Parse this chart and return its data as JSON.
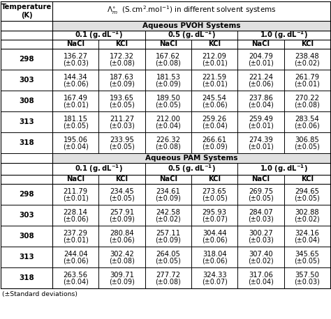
{
  "temperatures": [
    298,
    303,
    308,
    313,
    318
  ],
  "conc_headers": [
    "0.1 (g.dL⁻¹)",
    "0.5 (g.dL⁻¹)",
    "1.0 (g.dL⁻¹)"
  ],
  "salt_headers": [
    "NaCl",
    "KCl",
    "NaCl",
    "KCl",
    "NaCl",
    "KCl"
  ],
  "pvoh_data": [
    [
      [
        "136.27",
        "(±0.03)"
      ],
      [
        "172.32",
        "(±0.08)"
      ],
      [
        "167.62",
        "(±0.08)"
      ],
      [
        "212.09",
        "(±0.01)"
      ],
      [
        "204.79",
        "(±0.01)"
      ],
      [
        "238.48",
        "(±0.02)"
      ]
    ],
    [
      [
        "144.34",
        "(±0.06)"
      ],
      [
        "187.63",
        "(±0.09)"
      ],
      [
        "181.53",
        "(±0.09)"
      ],
      [
        "221.59",
        "(±0.01)"
      ],
      [
        "221.24",
        "(±0.06)"
      ],
      [
        "261.79",
        "(±0.01)"
      ]
    ],
    [
      [
        "167.49",
        "(±0.01)"
      ],
      [
        "193.65",
        "(±0.05)"
      ],
      [
        "189.50",
        "(±0.05)"
      ],
      [
        "245.54",
        "(±0.06)"
      ],
      [
        "237.86",
        "(±0.04)"
      ],
      [
        "270.22",
        "(±0.08)"
      ]
    ],
    [
      [
        "181.15",
        "(±0.05)"
      ],
      [
        "211.27",
        "(±0.03)"
      ],
      [
        "212.00",
        "(±0.04)"
      ],
      [
        "259.26",
        "(±0.04)"
      ],
      [
        "259.49",
        "(±0.01)"
      ],
      [
        "283.54",
        "(±0.06)"
      ]
    ],
    [
      [
        "195.06",
        "(±0.04)"
      ],
      [
        "233.95",
        "(±0.05)"
      ],
      [
        "226.32",
        "(±0.08)"
      ],
      [
        "266.61",
        "(±0.09)"
      ],
      [
        "274.39",
        "(±0.01)"
      ],
      [
        "306.85",
        "(±0.05)"
      ]
    ]
  ],
  "pam_data": [
    [
      [
        "211.79",
        "(±0.01)"
      ],
      [
        "234.45",
        "(±0.05)"
      ],
      [
        "234.61",
        "(±0.09)"
      ],
      [
        "273.65",
        "(±0.05)"
      ],
      [
        "269.75",
        "(±0.05)"
      ],
      [
        "294.65",
        "(±0.05)"
      ]
    ],
    [
      [
        "228.14",
        "(±0.06)"
      ],
      [
        "257.91",
        "(±0.09)"
      ],
      [
        "242.58",
        "(±0.02)"
      ],
      [
        "295.93",
        "(±0.07)"
      ],
      [
        "284.07",
        "(±0.03)"
      ],
      [
        "302.88",
        "(±0.02)"
      ]
    ],
    [
      [
        "237.29",
        "(±0.01)"
      ],
      [
        "280.84",
        "(±0.06)"
      ],
      [
        "257.11",
        "(±0.09)"
      ],
      [
        "304.44",
        "(±0.06)"
      ],
      [
        "300.27",
        "(±0.03)"
      ],
      [
        "324.16",
        "(±0.04)"
      ]
    ],
    [
      [
        "244.04",
        "(±0.06)"
      ],
      [
        "302.42",
        "(±0.08)"
      ],
      [
        "264.05",
        "(±0.05)"
      ],
      [
        "318.04",
        "(±0.06)"
      ],
      [
        "307.40",
        "(±0.02)"
      ],
      [
        "345.65",
        "(±0.05)"
      ]
    ],
    [
      [
        "263.56",
        "(±0.04)"
      ],
      [
        "309.71",
        "(±0.09)"
      ],
      [
        "277.72",
        "(±0.08)"
      ],
      [
        "324.33",
        "(±0.07)"
      ],
      [
        "317.06",
        "(±0.04)"
      ],
      [
        "357.50",
        "(±0.03)"
      ]
    ]
  ],
  "footnote": "(±Standard deviations)",
  "bg_color": "#ffffff",
  "text_color": "#000000",
  "font_size": 7.2
}
